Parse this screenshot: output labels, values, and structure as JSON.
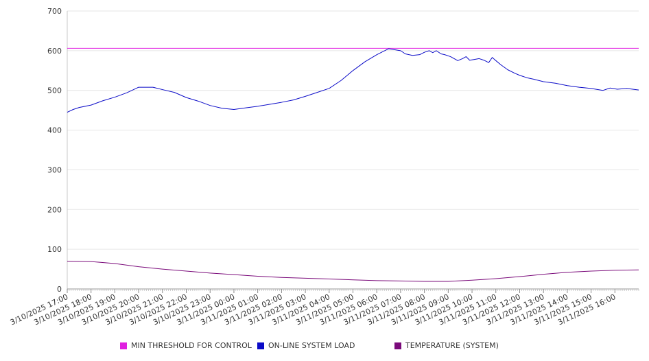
{
  "chart_data": {
    "type": "line",
    "title": "",
    "xlabel": "",
    "ylabel": "",
    "ylim": [
      0,
      700
    ],
    "yticks": [
      0,
      100,
      200,
      300,
      400,
      500,
      600,
      700
    ],
    "x_tick_labels": [
      "3/10/2025 17:00",
      "3/10/2025 18:00",
      "3/10/2025 19:00",
      "3/10/2025 20:00",
      "3/10/2025 21:00",
      "3/10/2025 22:00",
      "3/10/2025 23:00",
      "3/11/2025 00:00",
      "3/11/2025 01:00",
      "3/11/2025 02:00",
      "3/11/2025 03:00",
      "3/11/2025 04:00",
      "3/11/2025 05:00",
      "3/11/2025 06:00",
      "3/11/2025 07:00",
      "3/11/2025 08:00",
      "3/11/2025 09:00",
      "3/11/2025 10:00",
      "3/11/2025 11:00",
      "3/11/2025 12:00",
      "3/11/2025 13:00",
      "3/11/2025 14:00",
      "3/11/2025 15:00",
      "3/11/2025 16:00"
    ],
    "x_range_hours": [
      0,
      24
    ],
    "grid": true,
    "legend_position": "bottom",
    "series": [
      {
        "name": "MIN THRESHOLD FOR CONTROL",
        "color": "#e020e0",
        "x": [
          0,
          24
        ],
        "y": [
          606,
          606
        ]
      },
      {
        "name": "ON-LINE SYSTEM LOAD",
        "color": "#0b0bc8",
        "x": [
          0,
          0.25,
          0.5,
          1,
          1.5,
          2,
          2.5,
          3,
          3.3,
          3.6,
          4,
          4.5,
          5,
          5.5,
          6,
          6.5,
          7,
          7.5,
          8,
          8.5,
          9,
          9.5,
          10,
          10.5,
          11,
          11.5,
          12,
          12.5,
          13,
          13.5,
          14,
          14.2,
          14.5,
          14.8,
          15.0,
          15.2,
          15.35,
          15.5,
          15.7,
          15.85,
          16.1,
          16.4,
          16.6,
          16.75,
          16.9,
          17.1,
          17.3,
          17.5,
          17.7,
          17.85,
          18.0,
          18.2,
          18.5,
          18.8,
          19.0,
          19.3,
          19.6,
          20.0,
          20.5,
          21,
          21.5,
          22,
          22.5,
          22.8,
          23.1,
          23.5,
          24
        ],
        "y": [
          445,
          452,
          457,
          463,
          474,
          483,
          494,
          508,
          508,
          508,
          502,
          495,
          482,
          473,
          462,
          455,
          452,
          456,
          460,
          465,
          470,
          476,
          485,
          495,
          505,
          525,
          550,
          572,
          590,
          605,
          600,
          592,
          588,
          590,
          596,
          600,
          595,
          600,
          592,
          590,
          585,
          575,
          580,
          585,
          576,
          578,
          580,
          576,
          570,
          583,
          575,
          565,
          552,
          543,
          538,
          532,
          528,
          522,
          518,
          512,
          508,
          505,
          500,
          506,
          503,
          505,
          501
        ]
      },
      {
        "name": "TEMPERATURE (SYSTEM)",
        "color": "#7a0a7a",
        "x": [
          0,
          1,
          2,
          3,
          4,
          5,
          6,
          7,
          8,
          9,
          10,
          11,
          12,
          13,
          14,
          15,
          16,
          17,
          18,
          19,
          20,
          21,
          22,
          23,
          24
        ],
        "y": [
          70,
          69,
          64,
          56,
          50,
          45,
          40,
          36,
          32,
          29,
          27,
          25,
          23,
          21,
          20,
          19,
          19,
          22,
          26,
          31,
          37,
          42,
          45,
          47,
          48
        ]
      }
    ]
  }
}
